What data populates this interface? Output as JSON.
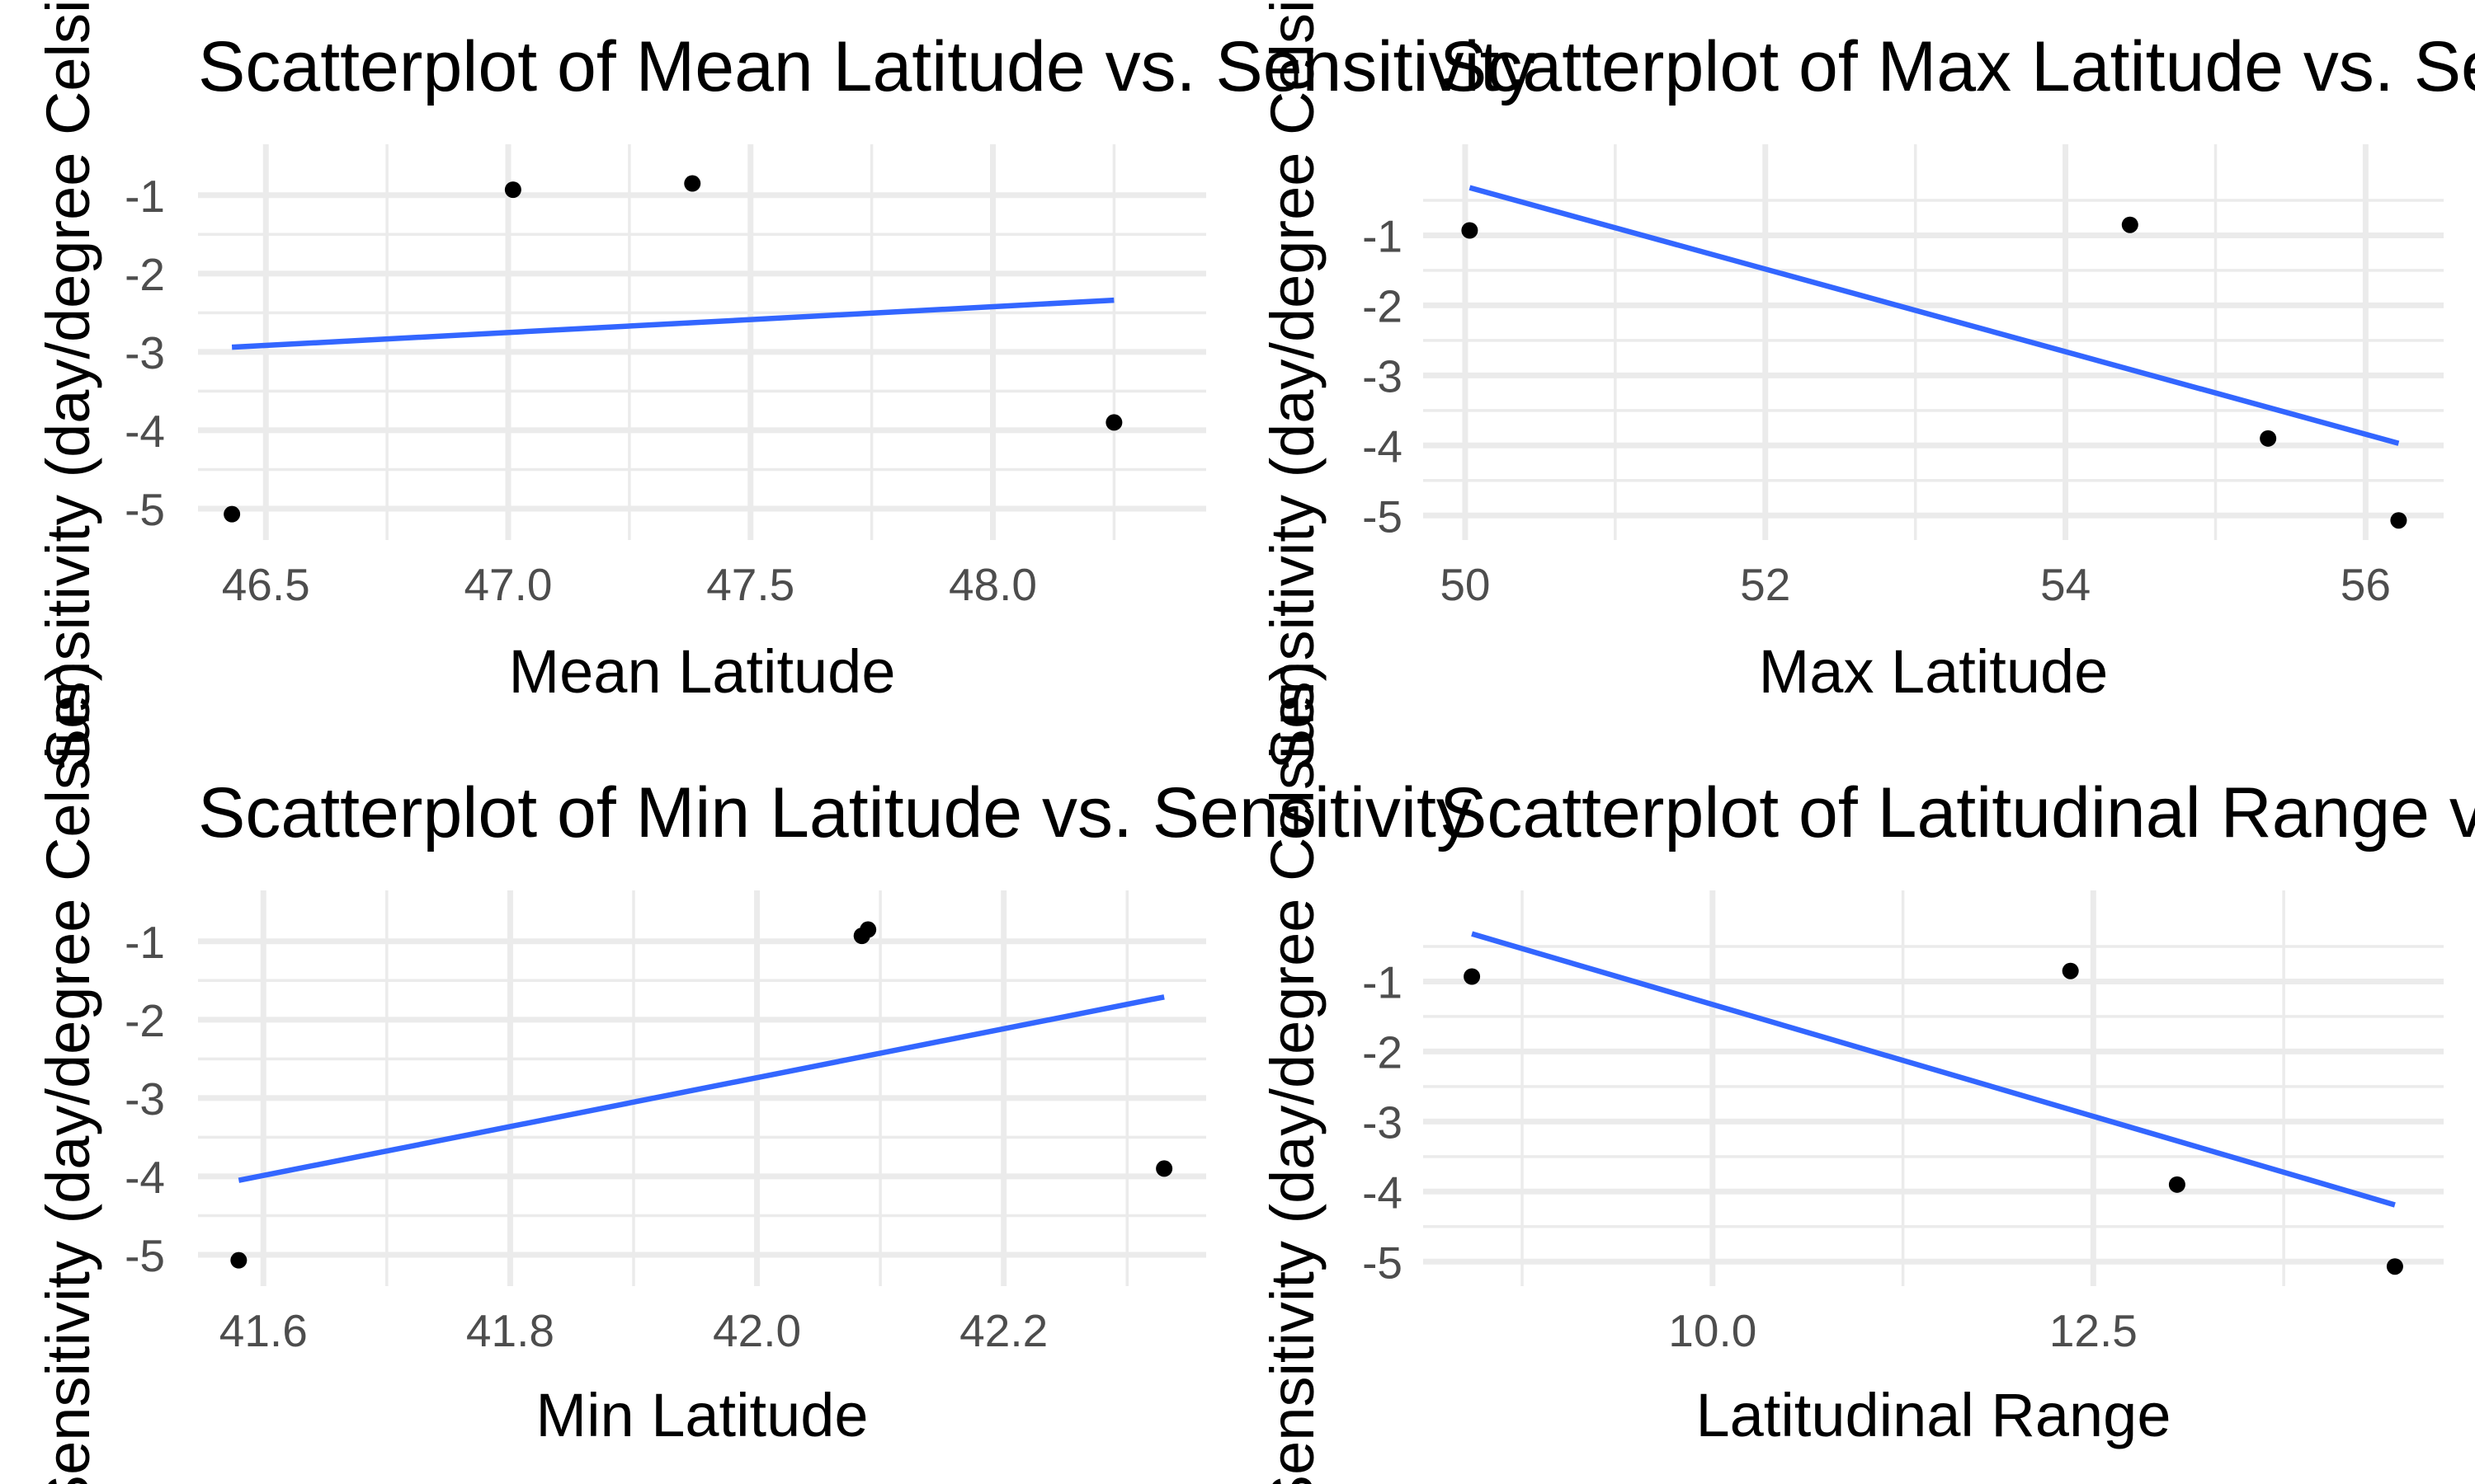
{
  "chart_data": [
    {
      "type": "scatter",
      "title": "Scatterplot of Mean Latitude vs. Sensitivity",
      "xlabel": "Mean Latitude",
      "ylabel": "Sensitivity (day/degree Celsius)",
      "xlim": [
        46.36,
        48.44
      ],
      "ylim": [
        -5.4,
        -0.35
      ],
      "x_ticks_major": [
        46.5,
        47.0,
        47.5,
        48.0
      ],
      "x_tick_labels": [
        "46.5",
        "47.0",
        "47.5",
        "48.0"
      ],
      "x_ticks_minor": [
        46.75,
        47.25,
        47.75,
        48.25
      ],
      "y_ticks_major": [
        -1,
        -2,
        -3,
        -4,
        -5
      ],
      "y_tick_labels": [
        "-1",
        "-2",
        "-3",
        "-4",
        "-5"
      ],
      "y_ticks_minor": [
        -1.5,
        -2.5,
        -3.5,
        -4.5
      ],
      "grid": true,
      "points": [
        {
          "x": 46.43,
          "y": -5.07
        },
        {
          "x": 47.01,
          "y": -0.93
        },
        {
          "x": 47.38,
          "y": -0.85
        },
        {
          "x": 48.25,
          "y": -3.9
        }
      ],
      "fit_line": {
        "x": [
          46.43,
          48.25
        ],
        "y": [
          -2.94,
          -2.34
        ]
      },
      "fit_color": "#3366ff"
    },
    {
      "type": "scatter",
      "title": "Scatterplot of Max Latitude vs. Sensitivity",
      "xlabel": "Max Latitude",
      "ylabel": "Sensitivity (day/degree Celsius)",
      "xlim": [
        49.72,
        56.52
      ],
      "ylim": [
        -5.35,
        0.3
      ],
      "x_ticks_major": [
        50,
        52,
        54,
        56
      ],
      "x_tick_labels": [
        "50",
        "52",
        "54",
        "56"
      ],
      "x_ticks_minor": [
        51,
        53,
        55
      ],
      "y_ticks_major": [
        -1,
        -2,
        -3,
        -4,
        -5
      ],
      "y_tick_labels": [
        "-1",
        "-2",
        "-3",
        "-4",
        "-5"
      ],
      "y_ticks_minor": [
        -0.5,
        -1.5,
        -2.5,
        -3.5,
        -4.5
      ],
      "grid": true,
      "points": [
        {
          "x": 50.03,
          "y": -0.93
        },
        {
          "x": 54.43,
          "y": -0.85
        },
        {
          "x": 55.35,
          "y": -3.9
        },
        {
          "x": 56.22,
          "y": -5.07
        }
      ],
      "fit_line": {
        "x": [
          50.03,
          56.22
        ],
        "y": [
          -0.32,
          -3.97
        ]
      },
      "fit_color": "#3366ff"
    },
    {
      "type": "scatter",
      "title": "Scatterplot of Min Latitude vs. Sensitivity",
      "xlabel": "Min Latitude",
      "ylabel": "Sensitivity (day/degree Celsius)",
      "xlim": [
        41.547,
        42.364
      ],
      "ylim": [
        -5.4,
        -0.35
      ],
      "x_ticks_major": [
        41.6,
        41.8,
        42.0,
        42.2
      ],
      "x_tick_labels": [
        "41.6",
        "41.8",
        "42.0",
        "42.2"
      ],
      "x_ticks_minor": [
        41.7,
        41.9,
        42.1,
        42.3
      ],
      "y_ticks_major": [
        -1,
        -2,
        -3,
        -4,
        -5
      ],
      "y_tick_labels": [
        "-1",
        "-2",
        "-3",
        "-4",
        "-5"
      ],
      "y_ticks_minor": [
        -1.5,
        -2.5,
        -3.5,
        -4.5
      ],
      "grid": true,
      "points": [
        {
          "x": 41.58,
          "y": -5.07
        },
        {
          "x": 42.085,
          "y": -0.93
        },
        {
          "x": 42.09,
          "y": -0.85
        },
        {
          "x": 42.33,
          "y": -3.9
        }
      ],
      "fit_line": {
        "x": [
          41.58,
          42.33
        ],
        "y": [
          -4.05,
          -1.71
        ]
      },
      "fit_color": "#3366ff"
    },
    {
      "type": "scatter",
      "title": "Scatterplot of Latitudinal Range vs. Sensitivity",
      "xlabel": "Latitudinal Range",
      "ylabel": "Sensitivity (day/degree Celsius)",
      "xlim": [
        8.1,
        14.8
      ],
      "ylim": [
        -5.35,
        0.3
      ],
      "x_ticks_major": [
        10.0,
        12.5
      ],
      "x_tick_labels": [
        "10.0",
        "12.5"
      ],
      "x_ticks_minor": [
        8.75,
        11.25,
        13.75
      ],
      "y_ticks_major": [
        -1,
        -2,
        -3,
        -4,
        -5
      ],
      "y_tick_labels": [
        "-1",
        "-2",
        "-3",
        "-4",
        "-5"
      ],
      "y_ticks_minor": [
        -0.5,
        -1.5,
        -2.5,
        -3.5,
        -4.5
      ],
      "grid": true,
      "points": [
        {
          "x": 8.42,
          "y": -0.93
        },
        {
          "x": 12.35,
          "y": -0.85
        },
        {
          "x": 13.05,
          "y": -3.9
        },
        {
          "x": 14.48,
          "y": -5.07
        }
      ],
      "fit_line": {
        "x": [
          8.42,
          14.48
        ],
        "y": [
          -0.32,
          -4.19
        ]
      },
      "fit_color": "#3366ff"
    }
  ]
}
